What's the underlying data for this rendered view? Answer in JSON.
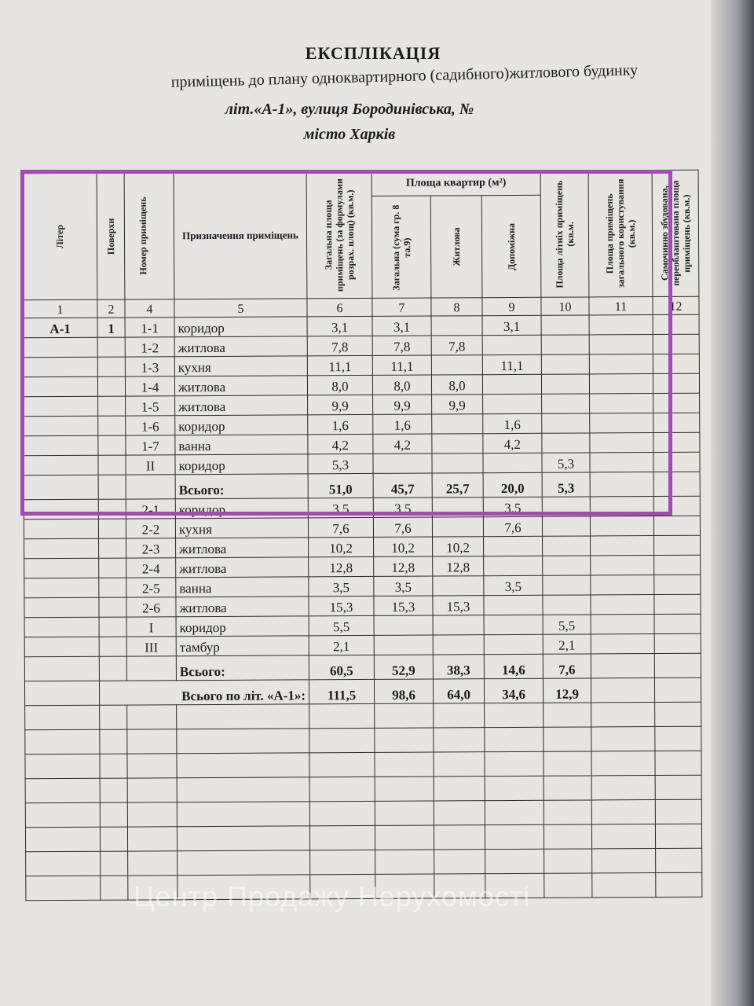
{
  "header": {
    "title": "ЕКСПЛІКАЦІЯ",
    "subtitle": "приміщень до плану одноквартирного (садибного)житлового будинку",
    "address": "літ.«А-1»,   вулиця Бородинівська, №",
    "city": "місто    Харків"
  },
  "columns": {
    "c1": "Літер",
    "c2": "Поверхи",
    "c3": "Номер приміщень",
    "c4": "Призначення приміщень",
    "c5": "Загальна площа приміщень (за формулами розрах. площ) (кв.м.)",
    "group": "Площа квартир (м²)",
    "c6": "Загальна (сума гр. 8 та.9)",
    "c7": "Житлова",
    "c8": "Допоміжна",
    "c9": "Площа літніх приміщень (кв.м.",
    "c10": "Площа приміщень загального користування (кв.м.)",
    "c11": "Самочинно збудована, переоблаштована площа приміщень (кв.м.)"
  },
  "column_numbers": [
    "1",
    "2",
    "4",
    "5",
    "6",
    "7",
    "8",
    "9",
    "10",
    "11",
    "12"
  ],
  "rows": [
    {
      "liter": "А-1",
      "floor": "1",
      "num": "1-1",
      "purpose": "коридор",
      "total": "3,1",
      "apt": "3,1",
      "living": "",
      "aux": "3,1",
      "summer": ""
    },
    {
      "liter": "",
      "floor": "",
      "num": "1-2",
      "purpose": "житлова",
      "total": "7,8",
      "apt": "7,8",
      "living": "7,8",
      "aux": "",
      "summer": ""
    },
    {
      "liter": "",
      "floor": "",
      "num": "1-3",
      "purpose": "кухня",
      "total": "11,1",
      "apt": "11,1",
      "living": "",
      "aux": "11,1",
      "summer": ""
    },
    {
      "liter": "",
      "floor": "",
      "num": "1-4",
      "purpose": "житлова",
      "total": "8,0",
      "apt": "8,0",
      "living": "8,0",
      "aux": "",
      "summer": ""
    },
    {
      "liter": "",
      "floor": "",
      "num": "1-5",
      "purpose": "житлова",
      "total": "9,9",
      "apt": "9,9",
      "living": "9,9",
      "aux": "",
      "summer": ""
    },
    {
      "liter": "",
      "floor": "",
      "num": "1-6",
      "purpose": "коридор",
      "total": "1,6",
      "apt": "1,6",
      "living": "",
      "aux": "1,6",
      "summer": ""
    },
    {
      "liter": "",
      "floor": "",
      "num": "1-7",
      "purpose": "ванна",
      "total": "4,2",
      "apt": "4,2",
      "living": "",
      "aux": "4,2",
      "summer": ""
    },
    {
      "liter": "",
      "floor": "",
      "num": "II",
      "purpose": "коридор",
      "total": "5,3",
      "apt": "",
      "living": "",
      "aux": "",
      "summer": "5,3"
    },
    {
      "liter": "",
      "floor": "",
      "num": "",
      "purpose": "Всього:",
      "total": "51,0",
      "apt": "45,7",
      "living": "25,7",
      "aux": "20,0",
      "summer": "5,3",
      "bold": true
    },
    {
      "liter": "",
      "floor": "",
      "num": "2-1",
      "purpose": "коридор",
      "total": "3,5",
      "apt": "3,5",
      "living": "",
      "aux": "3,5",
      "summer": ""
    },
    {
      "liter": "",
      "floor": "",
      "num": "2-2",
      "purpose": "кухня",
      "total": "7,6",
      "apt": "7,6",
      "living": "",
      "aux": "7,6",
      "summer": ""
    },
    {
      "liter": "",
      "floor": "",
      "num": "2-3",
      "purpose": "житлова",
      "total": "10,2",
      "apt": "10,2",
      "living": "10,2",
      "aux": "",
      "summer": ""
    },
    {
      "liter": "",
      "floor": "",
      "num": "2-4",
      "purpose": "житлова",
      "total": "12,8",
      "apt": "12,8",
      "living": "12,8",
      "aux": "",
      "summer": ""
    },
    {
      "liter": "",
      "floor": "",
      "num": "2-5",
      "purpose": "ванна",
      "total": "3,5",
      "apt": "3,5",
      "living": "",
      "aux": "3,5",
      "summer": ""
    },
    {
      "liter": "",
      "floor": "",
      "num": "2-6",
      "purpose": "житлова",
      "total": "15,3",
      "apt": "15,3",
      "living": "15,3",
      "aux": "",
      "summer": ""
    },
    {
      "liter": "",
      "floor": "",
      "num": "I",
      "purpose": "коридор",
      "total": "5,5",
      "apt": "",
      "living": "",
      "aux": "",
      "summer": "5,5"
    },
    {
      "liter": "",
      "floor": "",
      "num": "III",
      "purpose": "тамбур",
      "total": "2,1",
      "apt": "",
      "living": "",
      "aux": "",
      "summer": "2,1"
    },
    {
      "liter": "",
      "floor": "",
      "num": "",
      "purpose": "Всього:",
      "total": "60,5",
      "apt": "52,9",
      "living": "38,3",
      "aux": "14,6",
      "summer": "7,6",
      "bold": true
    },
    {
      "liter": "",
      "floor": "",
      "num": "",
      "purpose": "Всього по літ. «А-1»:",
      "total": "111,5",
      "apt": "98,6",
      "living": "64,0",
      "aux": "34,6",
      "summer": "12,9",
      "bold": true,
      "wide": true
    }
  ],
  "watermark": "Центр Продажу Нерухомості",
  "highlight_color": "#a24bb3"
}
